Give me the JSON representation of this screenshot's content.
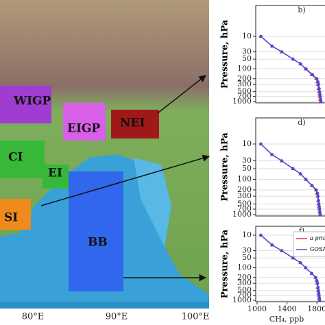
{
  "map": {
    "regions": [
      "WIGP",
      "EIGP",
      "NEI",
      "CI",
      "EI",
      "SI",
      "BB"
    ],
    "lon_labels": [
      "80°E",
      "90°E",
      "100°E"
    ]
  },
  "chart_data": [
    {
      "type": "line",
      "panel": "b)",
      "ylabel": "Pressure, hPa",
      "log_y": true,
      "y": [
        10,
        20,
        30,
        50,
        70,
        100,
        150,
        200,
        250,
        300,
        400,
        500,
        600,
        700,
        850,
        1000
      ],
      "series": [
        {
          "name": "a priori",
          "color": "#e0303a",
          "values": [
            1050,
            1200,
            1330,
            1480,
            1580,
            1650,
            1730,
            1790,
            1805,
            1812,
            1820,
            1828,
            1833,
            1838,
            1843,
            1848
          ]
        },
        {
          "name": "GOSAT",
          "color": "#4a4ad8",
          "values": [
            1050,
            1200,
            1330,
            1480,
            1580,
            1655,
            1740,
            1800,
            1815,
            1822,
            1830,
            1836,
            1840,
            1845,
            1850,
            1855
          ]
        }
      ],
      "xlim": [
        1000,
        2000
      ],
      "ylim": [
        1000,
        10
      ],
      "yticks": [
        10,
        30,
        50,
        100,
        200,
        300,
        500,
        700,
        1000
      ]
    },
    {
      "type": "line",
      "panel": "d)",
      "ylabel": "Pressure, hPa",
      "log_y": true,
      "y": [
        10,
        20,
        30,
        50,
        70,
        100,
        150,
        200,
        250,
        300,
        400,
        500,
        600,
        700,
        850,
        1000
      ],
      "series": [
        {
          "name": "a priori",
          "color": "#e0303a",
          "values": [
            1050,
            1200,
            1330,
            1480,
            1580,
            1650,
            1730,
            1785,
            1800,
            1808,
            1815,
            1820,
            1825,
            1830,
            1835,
            1840
          ]
        },
        {
          "name": "GOSAT",
          "color": "#4a4ad8",
          "values": [
            1050,
            1200,
            1330,
            1480,
            1580,
            1652,
            1735,
            1792,
            1808,
            1815,
            1822,
            1828,
            1832,
            1836,
            1840,
            1845
          ]
        }
      ],
      "xlim": [
        1000,
        2000
      ],
      "ylim": [
        1000,
        10
      ],
      "yticks": [
        10,
        30,
        50,
        100,
        200,
        300,
        500,
        700,
        1000
      ]
    },
    {
      "type": "line",
      "panel": "f)",
      "ylabel": "Pressure, hPa",
      "xlabel": "CH₄, ppb",
      "log_y": true,
      "y": [
        10,
        20,
        30,
        50,
        70,
        100,
        150,
        200,
        250,
        300,
        400,
        500,
        600,
        700,
        850,
        1000
      ],
      "series": [
        {
          "name": "a priori",
          "color": "#e0303a",
          "values": [
            1050,
            1200,
            1330,
            1480,
            1580,
            1650,
            1730,
            1780,
            1795,
            1803,
            1810,
            1815,
            1820,
            1824,
            1828,
            1832
          ]
        },
        {
          "name": "GOSAT",
          "color": "#4a4ad8",
          "values": [
            1050,
            1200,
            1330,
            1480,
            1580,
            1650,
            1732,
            1785,
            1800,
            1808,
            1815,
            1820,
            1825,
            1829,
            1833,
            1837
          ]
        }
      ],
      "xlim": [
        1000,
        2000
      ],
      "ylim": [
        1000,
        10
      ],
      "yticks": [
        10,
        30,
        50,
        100,
        200,
        300,
        500,
        700,
        1000
      ],
      "xticks": [
        1000,
        1400,
        1800
      ],
      "legend": "upper right"
    }
  ]
}
